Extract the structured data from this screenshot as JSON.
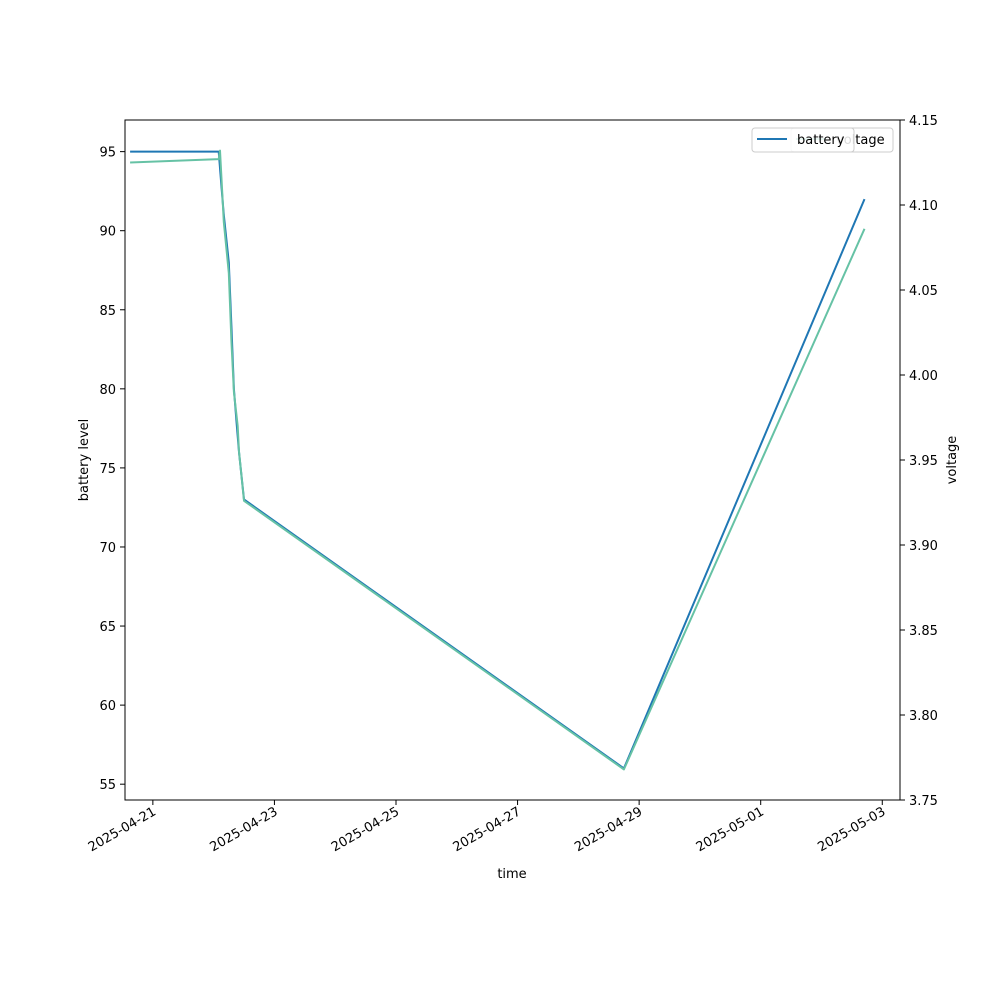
{
  "chart_data": {
    "type": "line",
    "title": "",
    "xlabel": "time",
    "ylabel_left": "battery level",
    "ylabel_right": "voltage",
    "xlim": [
      "2025-04-20T13:00",
      "2025-05-03T07:00"
    ],
    "ylim_left": [
      54,
      97
    ],
    "ylim_right": [
      3.75,
      4.15
    ],
    "x_ticks": [
      "2025-04-21",
      "2025-04-23",
      "2025-04-25",
      "2025-04-27",
      "2025-04-29",
      "2025-05-01",
      "2025-05-03"
    ],
    "y_ticks_left": [
      "55",
      "60",
      "65",
      "70",
      "75",
      "80",
      "85",
      "90",
      "95"
    ],
    "y_ticks_right": [
      "3.75",
      "3.80",
      "3.85",
      "3.90",
      "3.95",
      "4.00",
      "4.05",
      "4.10",
      "4.15"
    ],
    "grid": false,
    "legend_position": "top-right",
    "series": [
      {
        "name": "battery",
        "axis": "left",
        "color": "#1f77b4",
        "points": [
          [
            "2025-04-20T15:00",
            95
          ],
          [
            "2025-04-22T02:00",
            95
          ],
          [
            "2025-04-22T03:00",
            93
          ],
          [
            "2025-04-22T04:00",
            91
          ],
          [
            "2025-04-22T06:00",
            88
          ],
          [
            "2025-04-22T07:00",
            84
          ],
          [
            "2025-04-22T08:00",
            80
          ],
          [
            "2025-04-22T09:00",
            78
          ],
          [
            "2025-04-22T10:00",
            76
          ],
          [
            "2025-04-22T12:00",
            73
          ],
          [
            "2025-04-28T18:00",
            56
          ],
          [
            "2025-05-02T17:00",
            92
          ]
        ]
      },
      {
        "name": "voltage",
        "axis": "right",
        "color": "#66c2a5",
        "points": [
          [
            "2025-04-20T15:00",
            4.125
          ],
          [
            "2025-04-22T02:00",
            4.127
          ],
          [
            "2025-04-22T02:30",
            4.132
          ],
          [
            "2025-04-22T04:00",
            4.09
          ],
          [
            "2025-04-22T06:00",
            4.06
          ],
          [
            "2025-04-22T07:00",
            4.02
          ],
          [
            "2025-04-22T08:00",
            3.99
          ],
          [
            "2025-04-22T09:30",
            3.97
          ],
          [
            "2025-04-22T10:00",
            3.955
          ],
          [
            "2025-04-22T12:00",
            3.926
          ],
          [
            "2025-04-28T18:00",
            3.768
          ],
          [
            "2025-05-02T17:00",
            4.086
          ]
        ]
      }
    ]
  }
}
